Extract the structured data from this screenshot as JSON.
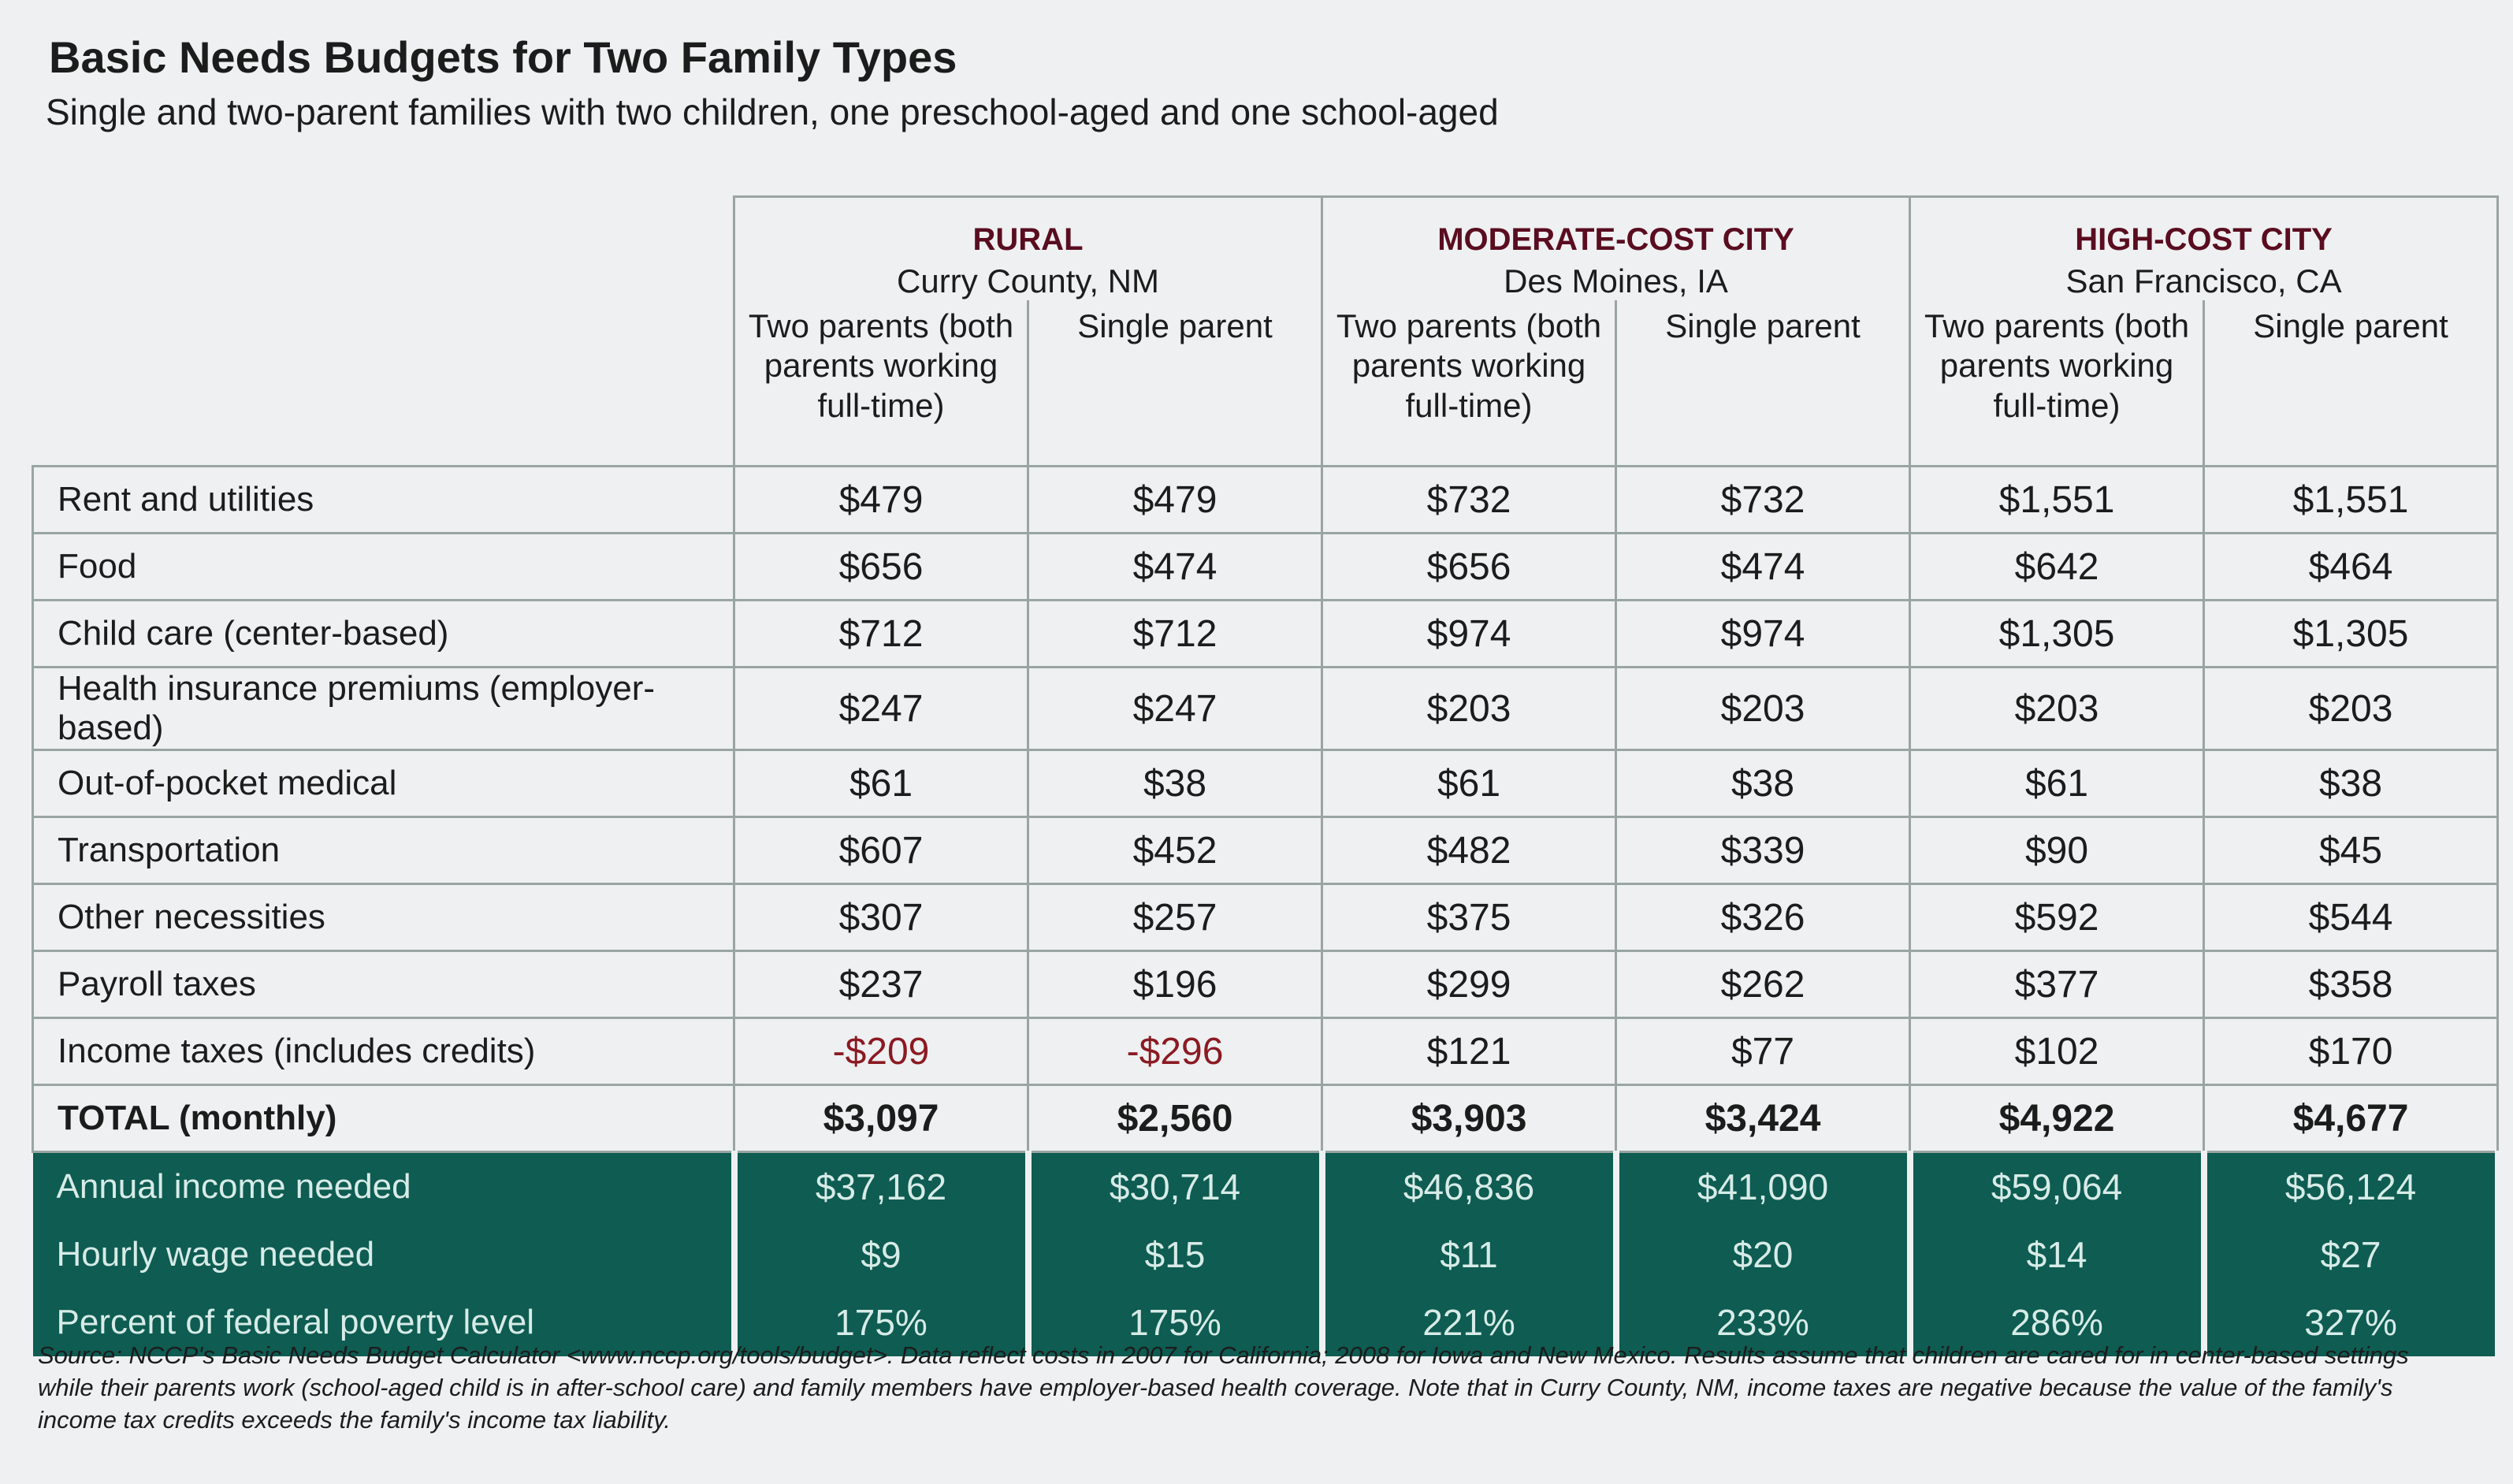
{
  "chart_data": {
    "type": "table",
    "title": "Basic Needs Budgets for Two Family Types",
    "subtitle": "Single and two-parent families with two children, one preschool-aged and one school-aged",
    "groups": [
      {
        "name": "RURAL",
        "place": "Curry County, NM"
      },
      {
        "name": "MODERATE-COST CITY",
        "place": "Des Moines, IA"
      },
      {
        "name": "HIGH-COST CITY",
        "place": "San Francisco, CA"
      }
    ],
    "family_types": [
      "Two parents (both parents working full-time)",
      "Single parent"
    ],
    "rows": [
      {
        "label": "Rent and utilities",
        "values": [
          "$479",
          "$479",
          "$732",
          "$732",
          "$1,551",
          "$1,551"
        ]
      },
      {
        "label": "Food",
        "values": [
          "$656",
          "$474",
          "$656",
          "$474",
          "$642",
          "$464"
        ]
      },
      {
        "label": "Child care (center-based)",
        "values": [
          "$712",
          "$712",
          "$974",
          "$974",
          "$1,305",
          "$1,305"
        ]
      },
      {
        "label": "Health insurance premiums (employer-based)",
        "values": [
          "$247",
          "$247",
          "$203",
          "$203",
          "$203",
          "$203"
        ]
      },
      {
        "label": "Out-of-pocket medical",
        "values": [
          "$61",
          "$38",
          "$61",
          "$38",
          "$61",
          "$38"
        ]
      },
      {
        "label": "Transportation",
        "values": [
          "$607",
          "$452",
          "$482",
          "$339",
          "$90",
          "$45"
        ]
      },
      {
        "label": "Other necessities",
        "values": [
          "$307",
          "$257",
          "$375",
          "$326",
          "$592",
          "$544"
        ]
      },
      {
        "label": "Payroll taxes",
        "values": [
          "$237",
          "$196",
          "$299",
          "$262",
          "$377",
          "$358"
        ]
      },
      {
        "label": "Income taxes (includes credits)",
        "values": [
          "-$209",
          "-$296",
          "$121",
          "$77",
          "$102",
          "$170"
        ]
      },
      {
        "label": "TOTAL (monthly)",
        "values": [
          "$3,097",
          "$2,560",
          "$3,903",
          "$3,424",
          "$4,922",
          "$4,677"
        ]
      }
    ],
    "summary_rows": [
      {
        "label": "Annual income needed",
        "values": [
          "$37,162",
          "$30,714",
          "$46,836",
          "$41,090",
          "$59,064",
          "$56,124"
        ]
      },
      {
        "label": "Hourly wage needed",
        "values": [
          "$9",
          "$15",
          "$11",
          "$20",
          "$14",
          "$27"
        ]
      },
      {
        "label": "Percent of federal poverty level",
        "values": [
          "175%",
          "175%",
          "221%",
          "233%",
          "286%",
          "327%"
        ]
      }
    ],
    "colors": {
      "group_heading": "#5a0d20",
      "summary_band": "#0e5c52",
      "negative": "#8b1a22"
    }
  },
  "source_note": "Source: NCCP's Basic Needs Budget Calculator <www.nccp.org/tools/budget>. Data reflect costs in 2007 for California; 2008 for Iowa and New Mexico. Results assume that children are cared for in center-based settings while their parents work (school-aged child is in after-school care) and family members have employer-based health coverage. Note that in Curry County, NM, income taxes are negative because the value of the family's income tax credits exceeds the family's income tax liability."
}
